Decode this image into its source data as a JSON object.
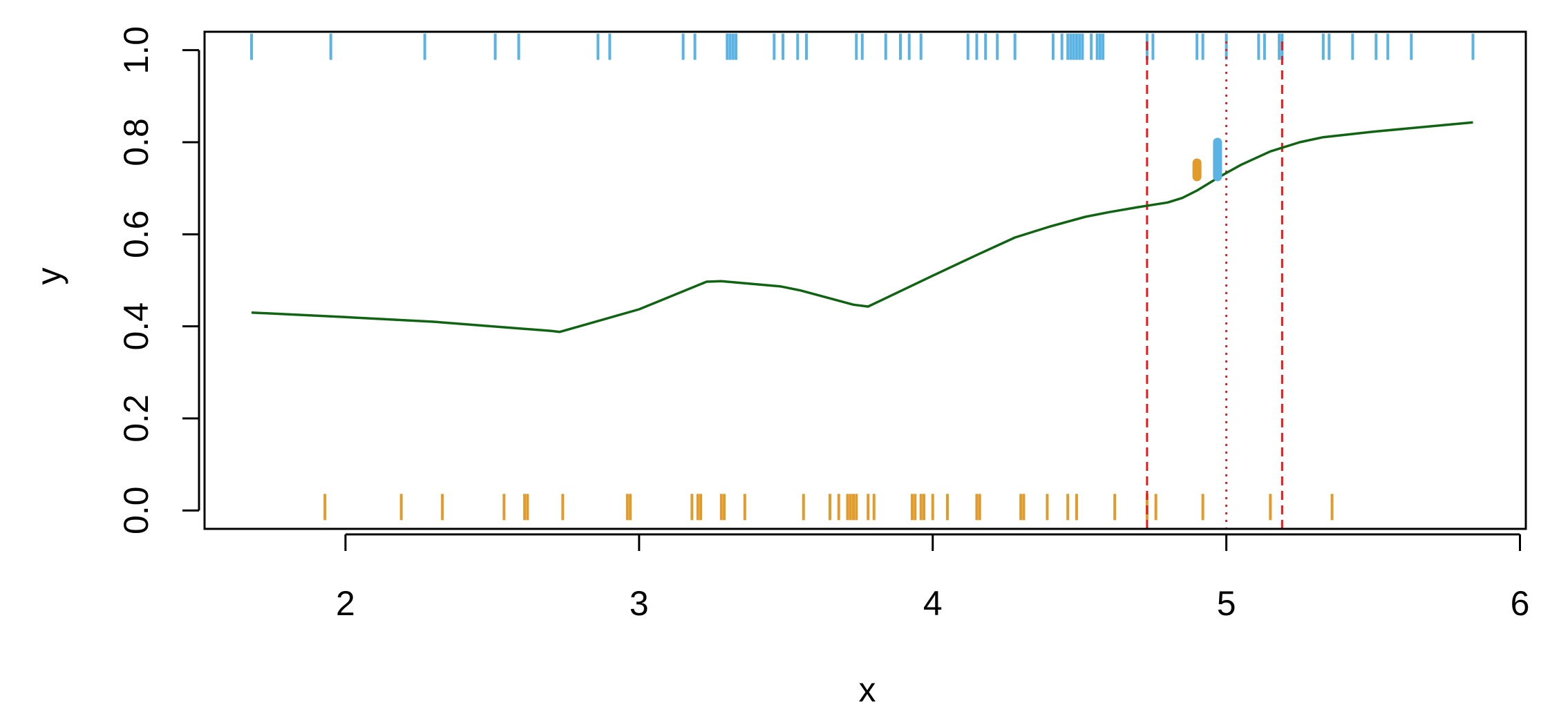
{
  "chart_data": {
    "type": "line",
    "xlabel": "x",
    "ylabel": "y",
    "xlim": [
      1.52,
      6.02
    ],
    "ylim": [
      -0.04,
      1.04
    ],
    "x_ticks": [
      "2",
      "3",
      "4",
      "5",
      "6"
    ],
    "y_ticks": [
      "0.0",
      "0.2",
      "0.4",
      "0.6",
      "0.8",
      "1.0"
    ],
    "grid": false,
    "colors": {
      "line": "#0f6412",
      "rug_top": "#5bb3e3",
      "rug_bottom": "#e19a2c",
      "vline": "#e41a1c"
    },
    "series": [
      {
        "x": [
          1.68,
          2.0,
          2.3,
          2.6,
          2.7,
          2.73,
          3.0,
          3.23,
          3.28,
          3.48,
          3.55,
          3.73,
          3.78,
          4.0,
          4.15,
          4.28,
          4.4,
          4.52,
          4.6,
          4.7,
          4.8,
          4.85,
          4.9,
          4.98,
          5.05,
          5.15,
          5.25,
          5.33,
          5.5,
          5.84
        ],
        "y": [
          0.43,
          0.42,
          0.41,
          0.395,
          0.39,
          0.388,
          0.437,
          0.497,
          0.498,
          0.487,
          0.478,
          0.447,
          0.443,
          0.51,
          0.555,
          0.593,
          0.617,
          0.638,
          0.648,
          0.659,
          0.669,
          0.679,
          0.695,
          0.726,
          0.751,
          0.78,
          0.8,
          0.811,
          0.823,
          0.843
        ]
      }
    ],
    "rug_top": [
      1.68,
      1.95,
      2.27,
      2.51,
      2.59,
      2.86,
      2.9,
      3.15,
      3.19,
      3.3,
      3.31,
      3.32,
      3.33,
      3.46,
      3.49,
      3.54,
      3.57,
      3.74,
      3.76,
      3.84,
      3.89,
      3.92,
      3.96,
      4.12,
      4.15,
      4.18,
      4.22,
      4.28,
      4.41,
      4.44,
      4.46,
      4.47,
      4.48,
      4.49,
      4.5,
      4.51,
      4.54,
      4.56,
      4.57,
      4.58,
      4.73,
      4.75,
      4.9,
      4.92,
      5.0,
      5.11,
      5.13,
      5.18,
      5.19,
      5.33,
      5.35,
      5.43,
      5.51,
      5.55,
      5.63,
      5.84
    ],
    "rug_bottom": [
      1.93,
      2.19,
      2.33,
      2.54,
      2.61,
      2.62,
      2.74,
      2.96,
      2.97,
      3.18,
      3.2,
      3.21,
      3.28,
      3.29,
      3.36,
      3.56,
      3.65,
      3.68,
      3.71,
      3.72,
      3.73,
      3.74,
      3.78,
      3.8,
      3.93,
      3.94,
      3.96,
      3.97,
      4.0,
      4.05,
      4.15,
      4.16,
      4.3,
      4.31,
      4.39,
      4.46,
      4.49,
      4.62,
      4.73,
      4.76,
      4.92,
      5.15,
      5.36
    ],
    "vlines": [
      {
        "x": 4.73,
        "style": "dashed"
      },
      {
        "x": 5.0,
        "style": "dotted"
      },
      {
        "x": 5.19,
        "style": "dashed"
      }
    ],
    "segments": [
      {
        "x": 4.9,
        "y0": 0.725,
        "y1": 0.755,
        "color": "#e19a2c"
      },
      {
        "x": 4.97,
        "y0": 0.725,
        "y1": 0.8,
        "color": "#5bb3e3"
      }
    ]
  }
}
